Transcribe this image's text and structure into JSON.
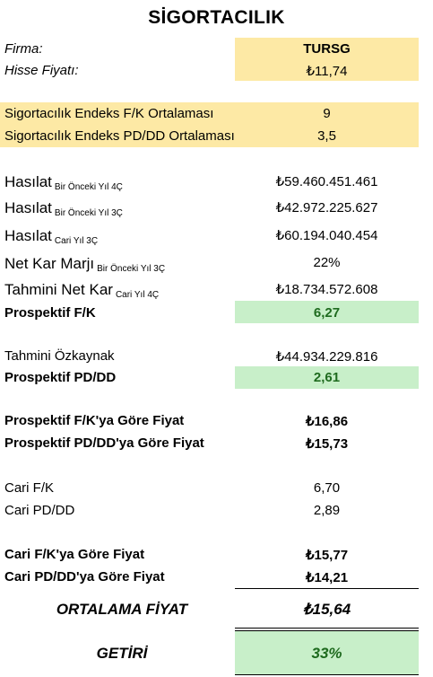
{
  "title": "SİGORTACILIK",
  "firma_label": "Firma:",
  "firma_value": "TURSG",
  "fiyat_label": "Hisse Fiyatı:",
  "fiyat_value": "₺11,74",
  "endeks_fk_label": "Sigortacılık Endeks F/K Ortalaması",
  "endeks_fk_value": "9",
  "endeks_pddd_label": "Sigortacılık Endeks PD/DD Ortalaması",
  "endeks_pddd_value": "3,5",
  "rows": [
    {
      "label": "Hasılat",
      "sub": "Bir Önceki Yıl 4Ç",
      "value": "₺59.460.451.461"
    },
    {
      "label": "Hasılat",
      "sub": "Bir Önceki Yıl 3Ç",
      "value": "₺42.972.225.627"
    },
    {
      "label": "Hasılat",
      "sub": "Cari Yıl 3Ç",
      "value": "₺60.194.040.454"
    },
    {
      "label": "Net Kar Marjı",
      "sub": "Bir Önceki Yıl 3Ç",
      "value": "22%"
    },
    {
      "label": "Tahmini Net Kar",
      "sub": "Cari Yıl 4Ç",
      "value": "₺18.734.572.608"
    }
  ],
  "prospektif_fk_label": "Prospektif F/K",
  "prospektif_fk_value": "6,27",
  "ozkaynak_label": "Tahmini Özkaynak",
  "ozkaynak_value": "₺44.934.229.816",
  "prospektif_pddd_label": "Prospektif PD/DD",
  "prospektif_pddd_value": "2,61",
  "pfk_fiyat_label": "Prospektif F/K'ya Göre Fiyat",
  "pfk_fiyat_value": "₺16,86",
  "ppddd_fiyat_label": "Prospektif PD/DD'ya Göre Fiyat",
  "ppddd_fiyat_value": "₺15,73",
  "cari_fk_label": "Cari F/K",
  "cari_fk_value": "6,70",
  "cari_pddd_label": "Cari PD/DD",
  "cari_pddd_value": "2,89",
  "cfk_fiyat_label": "Cari F/K'ya Göre Fiyat",
  "cfk_fiyat_value": "₺15,77",
  "cpddd_fiyat_label": "Cari PD/DD'ya Göre Fiyat",
  "cpddd_fiyat_value": "₺14,21",
  "ortalama_label": "ORTALAMA FİYAT",
  "ortalama_value": "₺15,64",
  "getiri_label": "GETİRİ",
  "getiri_value": "33%",
  "colors": {
    "yellow": "#fde9a5",
    "green": "#c8efc9",
    "dark_green": "#1f6b1f"
  }
}
